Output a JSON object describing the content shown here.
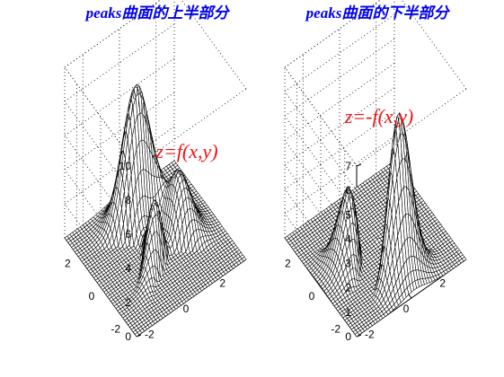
{
  "figure": {
    "background": "#ffffff",
    "title_color": "#0000ee",
    "formula_color": "#ee1111",
    "surface_color": "#ffffff",
    "mesh_color": "#000000"
  },
  "chart_data": [
    {
      "type": "surface3d",
      "title": "peaks曲面的上半部分",
      "annotation": "z=f(x,y)",
      "function": "peaks",
      "sign": 1,
      "clip": "z < 0 set to 0",
      "xlim": [
        -3,
        3
      ],
      "ylim": [
        -3,
        3
      ],
      "zlim": [
        0,
        10
      ],
      "x_ticks": [
        -2,
        0,
        2
      ],
      "y_ticks": [
        -2,
        0,
        2
      ],
      "z_ticks": [
        0,
        2,
        4,
        6,
        8,
        10
      ],
      "x_tick_labels": [
        "-2",
        "0",
        "2"
      ],
      "y_tick_labels": [
        "-2",
        "0",
        "2"
      ],
      "z_tick_labels": [
        "0",
        "2",
        "4",
        "6",
        "8",
        "10"
      ],
      "grid": true,
      "box": true,
      "peak_max": 8.1
    },
    {
      "type": "surface3d",
      "title": "peaks曲面的下半部分",
      "annotation": "z=-f(x,y)",
      "function": "peaks",
      "sign": -1,
      "clip": "z < 0 set to 0",
      "xlim": [
        -3,
        3
      ],
      "ylim": [
        -3,
        3
      ],
      "zlim": [
        0,
        7
      ],
      "x_ticks": [
        -2,
        0,
        2
      ],
      "y_ticks": [
        -2,
        0,
        2
      ],
      "z_ticks": [
        0,
        1,
        2,
        3,
        4,
        5,
        6,
        7
      ],
      "x_tick_labels": [
        "-2",
        "0",
        "2"
      ],
      "y_tick_labels": [
        "-2",
        "0",
        "2"
      ],
      "z_tick_labels": [
        "0",
        "1",
        "2",
        "3",
        "4",
        "5",
        "6",
        "7"
      ],
      "grid": true,
      "box": true,
      "peak_max": 6.55
    }
  ]
}
